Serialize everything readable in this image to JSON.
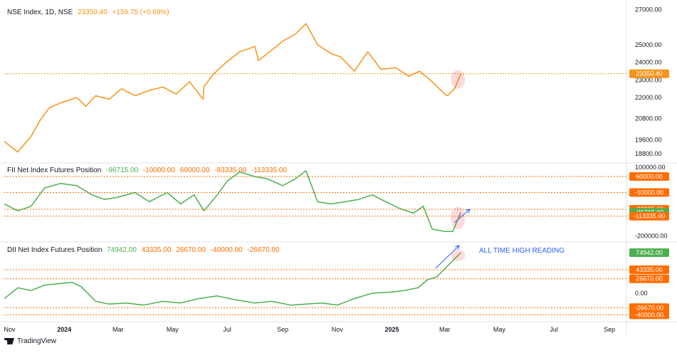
{
  "chart_data": [
    {
      "type": "line",
      "title": "NSE Index, 1D, NSE",
      "last_value": "23350.40",
      "change": "+159.75 (+0.69%)",
      "ylim": [
        18400,
        27300
      ],
      "y_ticks": [
        "27000.00",
        "25000.00",
        "24000.00",
        "23000.00",
        "22000.00",
        "20800.00",
        "19600.00",
        "18800.00"
      ],
      "last_label": "23350.40",
      "color": "#f7931a",
      "series": [
        {
          "x": [
            "2023-10-26",
            "2023-11-10",
            "2023-11-25",
            "2023-12-05",
            "2023-12-15",
            "2023-12-28",
            "2024-01-15",
            "2024-01-25",
            "2024-02-05",
            "2024-02-20",
            "2024-03-05",
            "2024-03-20",
            "2024-04-05",
            "2024-04-20",
            "2024-05-05",
            "2024-05-20",
            "2024-06-04",
            "2024-06-05",
            "2024-06-15",
            "2024-06-30",
            "2024-07-15",
            "2024-08-01",
            "2024-08-05",
            "2024-08-20",
            "2024-09-01",
            "2024-09-15",
            "2024-09-27",
            "2024-10-10",
            "2024-10-25",
            "2024-11-05",
            "2024-11-20",
            "2024-12-05",
            "2024-12-20",
            "2025-01-05",
            "2025-01-20",
            "2025-02-01",
            "2025-02-15",
            "2025-03-01",
            "2025-03-04",
            "2025-03-12",
            "2025-03-19"
          ],
          "values": [
            19500,
            18900,
            19800,
            20700,
            21400,
            21700,
            22000,
            21500,
            22100,
            21900,
            22500,
            22100,
            22400,
            22600,
            22200,
            22900,
            21900,
            22600,
            23300,
            24000,
            24600,
            24900,
            24100,
            24700,
            25200,
            25600,
            26200,
            25000,
            24500,
            24300,
            23500,
            24600,
            23600,
            23700,
            23200,
            23500,
            22900,
            22200,
            22100,
            22500,
            23350
          ]
        }
      ]
    },
    {
      "type": "line",
      "title": "FII Net Index Futures Position",
      "legend_values": [
        "-96715.00",
        "-10000.00",
        "60000.00",
        "-83335.00",
        "-113335.00"
      ],
      "ylim": [
        -220000,
        110000
      ],
      "y_ticks": [
        "100000.00",
        "-200000.00"
      ],
      "badges": [
        {
          "text": "60000.00",
          "value": 60000,
          "color": "#ff6d00"
        },
        {
          "text": "-10000.00",
          "value": -10000,
          "color": "#ff6d00"
        },
        {
          "text": "-83335.00",
          "value": -83335,
          "color": "#ff6d00"
        },
        {
          "text": "-96715.00",
          "value": -96715,
          "color": "#4caf50"
        },
        {
          "text": "-113335.00",
          "value": -113335,
          "color": "#ff6d00"
        }
      ],
      "levels": [
        60000,
        -10000,
        -83335,
        -113335
      ],
      "color": "#4caf50",
      "series": [
        {
          "x": [
            "2023-10-26",
            "2023-11-10",
            "2023-11-25",
            "2023-12-10",
            "2023-12-28",
            "2024-01-15",
            "2024-02-01",
            "2024-02-15",
            "2024-03-01",
            "2024-03-20",
            "2024-04-05",
            "2024-04-25",
            "2024-05-10",
            "2024-05-25",
            "2024-06-05",
            "2024-06-20",
            "2024-07-01",
            "2024-07-15",
            "2024-08-01",
            "2024-08-15",
            "2024-09-01",
            "2024-09-15",
            "2024-09-27",
            "2024-10-10",
            "2024-10-25",
            "2024-11-10",
            "2024-11-25",
            "2024-12-10",
            "2024-12-25",
            "2025-01-10",
            "2025-01-25",
            "2025-02-05",
            "2025-02-15",
            "2025-03-01",
            "2025-03-10",
            "2025-03-19"
          ],
          "values": [
            -60000,
            -90000,
            -70000,
            10000,
            30000,
            20000,
            -20000,
            -40000,
            -30000,
            -10000,
            -50000,
            -10000,
            -60000,
            -20000,
            -90000,
            -20000,
            40000,
            80000,
            60000,
            50000,
            20000,
            50000,
            85000,
            -50000,
            -60000,
            -50000,
            -40000,
            -20000,
            -50000,
            -80000,
            -100000,
            -70000,
            -170000,
            -180000,
            -180000,
            -96715
          ]
        }
      ]
    },
    {
      "type": "line",
      "title": "DII Net Index Futures Position",
      "legend_values": [
        "74942.00",
        "43335.00",
        "26670.00",
        "-40000.00",
        "-26670.00"
      ],
      "ylim": [
        -50000,
        92000
      ],
      "y_ticks": [
        "0.00"
      ],
      "badges": [
        {
          "text": "74942.00",
          "value": 74942,
          "color": "#4caf50"
        },
        {
          "text": "43335.00",
          "value": 43335,
          "color": "#ff6d00"
        },
        {
          "text": "26670.00",
          "value": 26670,
          "color": "#ff6d00"
        },
        {
          "text": "-26670.00",
          "value": -26670,
          "color": "#ff6d00"
        },
        {
          "text": "-40000.00",
          "value": -40000,
          "color": "#ff6d00"
        }
      ],
      "levels": [
        43335,
        26670,
        -26670,
        -40000
      ],
      "annotation": "ALL TIME HIGH READING",
      "color": "#4caf50",
      "series": [
        {
          "x": [
            "2023-10-26",
            "2023-11-10",
            "2023-11-25",
            "2023-12-10",
            "2023-12-28",
            "2024-01-10",
            "2024-01-20",
            "2024-02-05",
            "2024-02-20",
            "2024-03-10",
            "2024-03-30",
            "2024-04-20",
            "2024-05-10",
            "2024-05-30",
            "2024-06-20",
            "2024-07-10",
            "2024-08-01",
            "2024-08-20",
            "2024-09-10",
            "2024-09-27",
            "2024-10-15",
            "2024-11-01",
            "2024-11-20",
            "2024-12-10",
            "2024-12-30",
            "2025-01-15",
            "2025-01-30",
            "2025-02-10",
            "2025-02-20",
            "2025-03-01",
            "2025-03-10",
            "2025-03-19"
          ],
          "values": [
            -10000,
            10000,
            5000,
            15000,
            18000,
            20000,
            12000,
            -15000,
            -20000,
            -18000,
            -22000,
            -15000,
            -18000,
            -10000,
            -5000,
            -12000,
            -18000,
            -15000,
            -22000,
            -20000,
            -18000,
            -22000,
            -10000,
            0,
            2000,
            5000,
            10000,
            25000,
            30000,
            45000,
            60000,
            74942
          ]
        }
      ]
    }
  ],
  "x_axis": {
    "labels": [
      "Nov",
      "2024",
      "Mar",
      "May",
      "Jul",
      "Sep",
      "Nov",
      "2025",
      "Mar",
      "May",
      "Jul",
      "Sep"
    ],
    "dates": [
      "2023-11-01",
      "2024-01-01",
      "2024-03-01",
      "2024-05-01",
      "2024-07-01",
      "2024-09-01",
      "2024-11-01",
      "2025-01-01",
      "2025-03-01",
      "2025-05-01",
      "2025-07-01",
      "2025-09-01"
    ],
    "bold": [
      false,
      true,
      false,
      false,
      false,
      false,
      false,
      true,
      false,
      false,
      false,
      false
    ],
    "start": "2023-10-26",
    "end": "2025-09-20"
  },
  "brand": "TradingView"
}
